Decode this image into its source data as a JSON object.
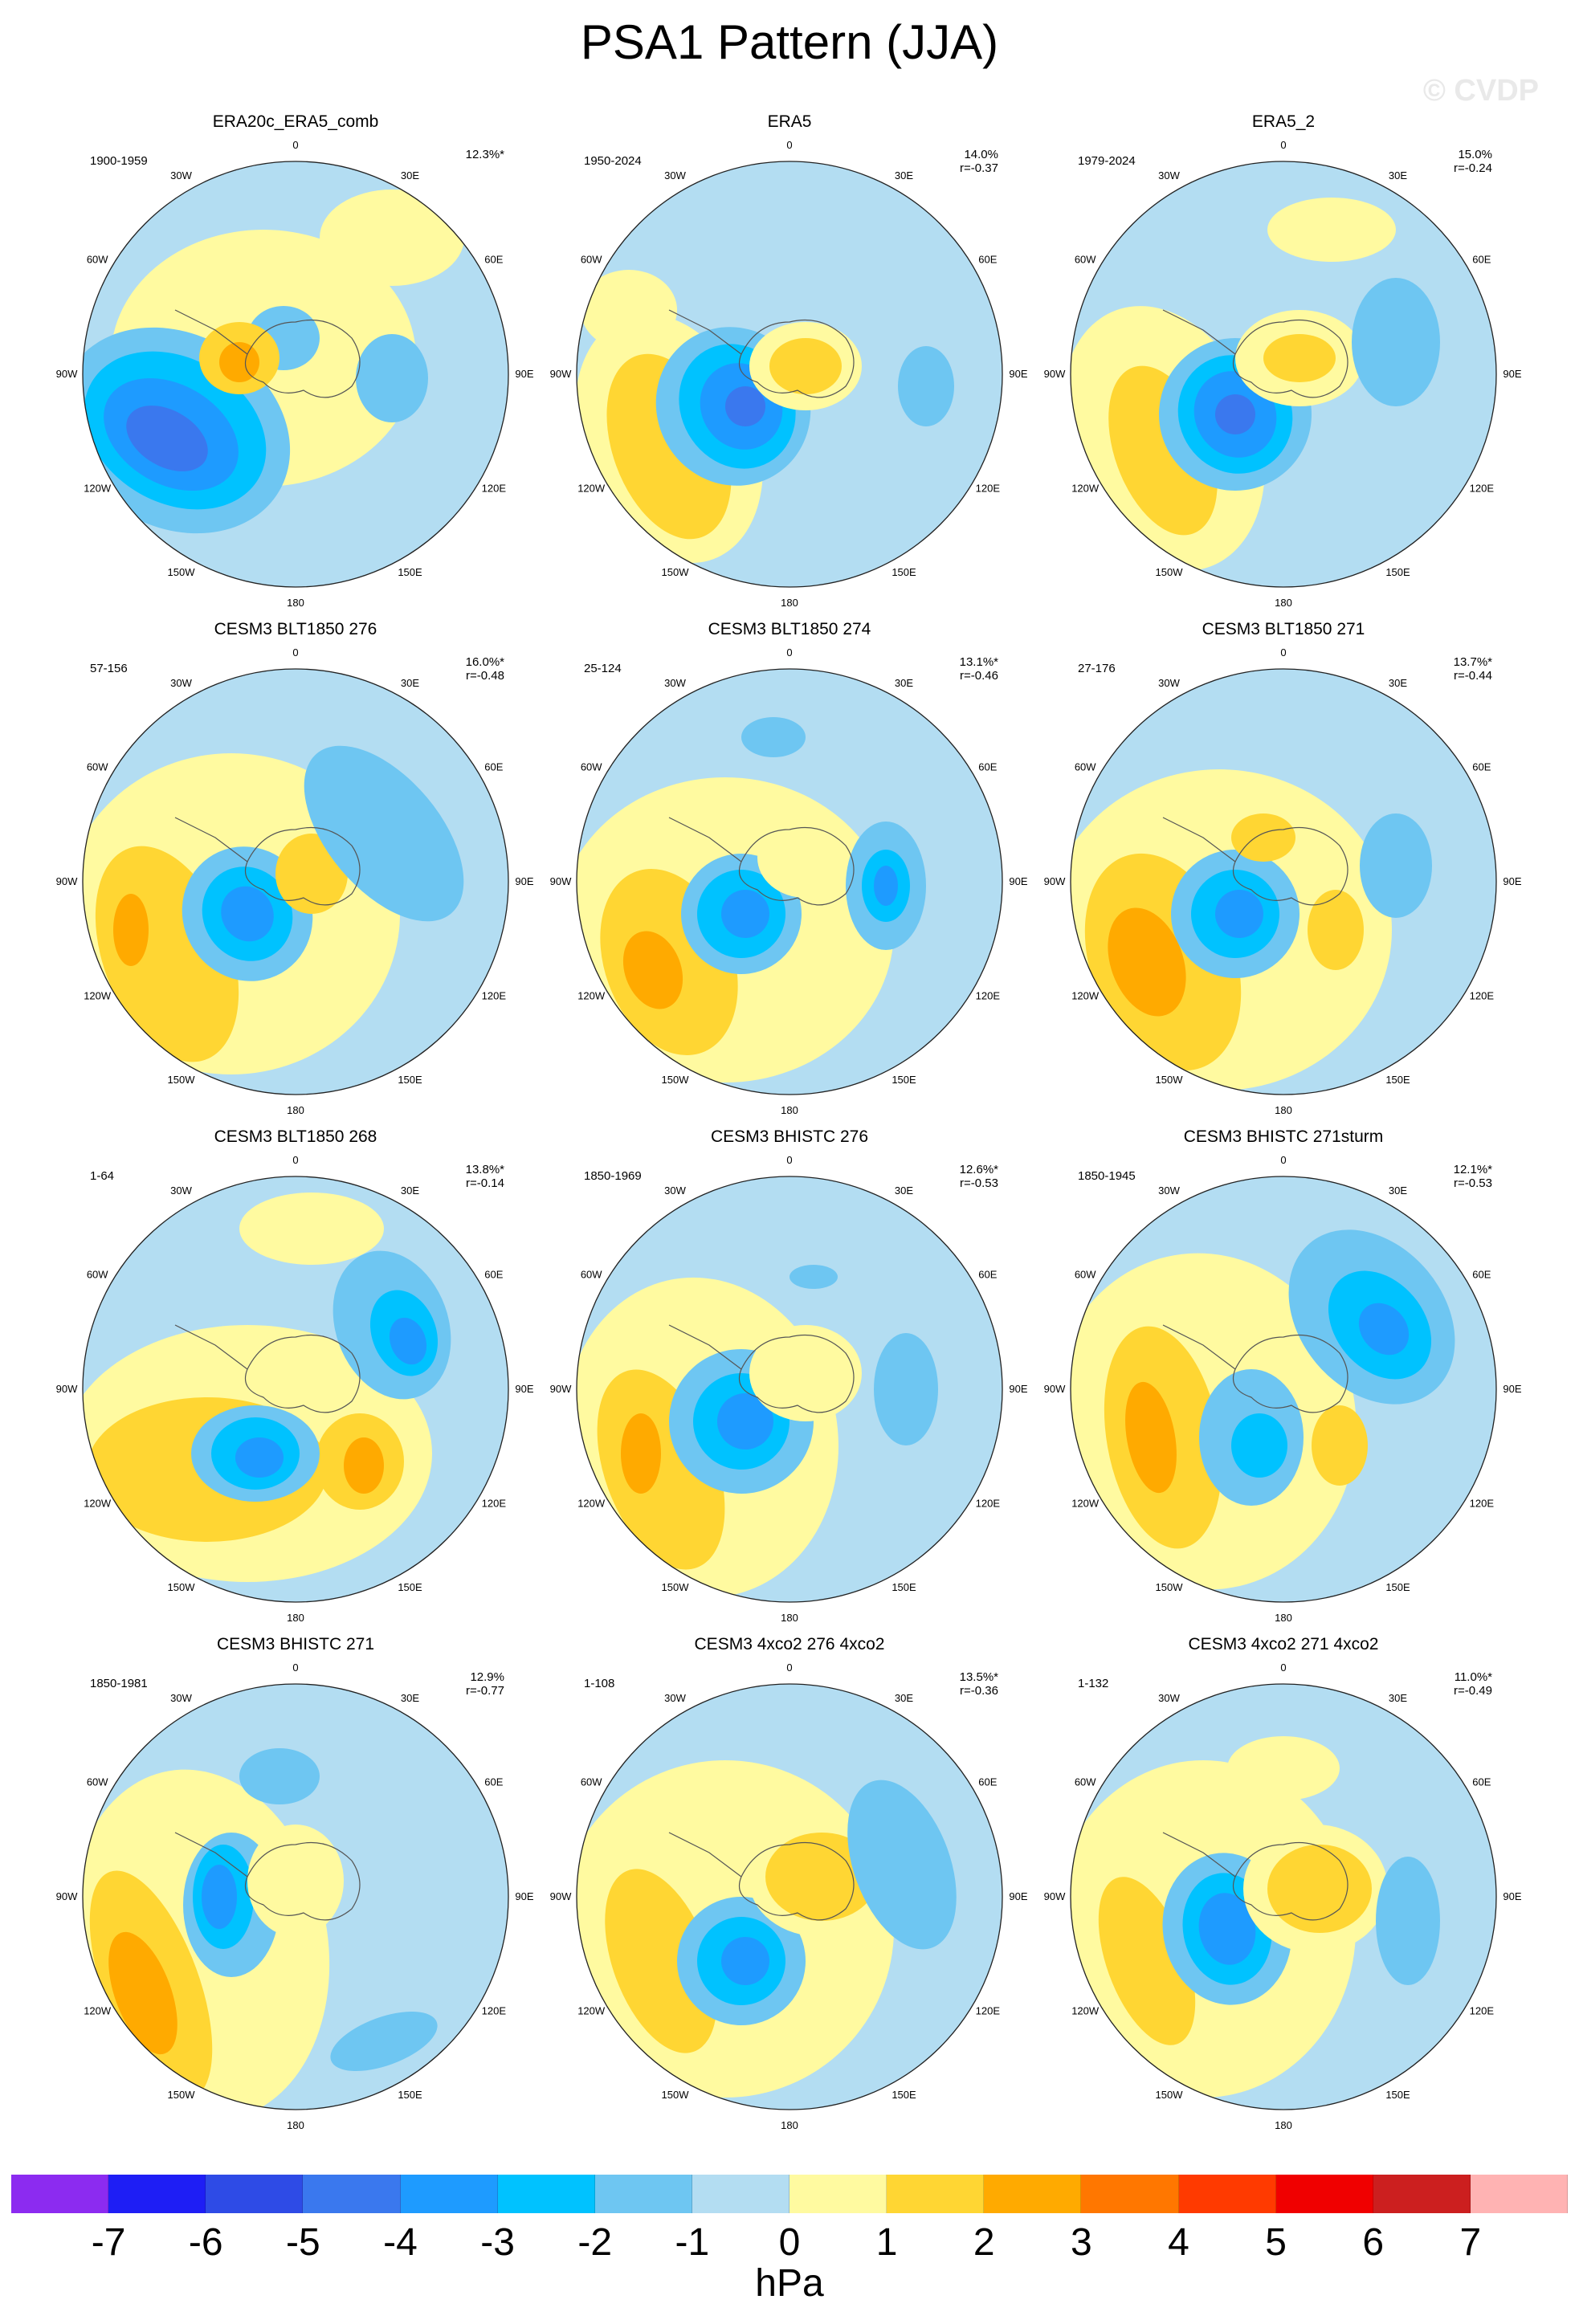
{
  "title": "PSA1 Pattern (JJA)",
  "watermark": "© CVDP",
  "lon_labels": [
    "0",
    "30E",
    "60E",
    "90E",
    "120E",
    "150E",
    "180",
    "150W",
    "120W",
    "90W",
    "60W",
    "30W"
  ],
  "panels": [
    {
      "title": "ERA20c_ERA5_comb",
      "period": "1900-1959",
      "pct": "12.3%*",
      "r": ""
    },
    {
      "title": "ERA5",
      "period": "1950-2024",
      "pct": "14.0%",
      "r": "r=-0.37"
    },
    {
      "title": "ERA5_2",
      "period": "1979-2024",
      "pct": "15.0%",
      "r": "r=-0.24"
    },
    {
      "title": "CESM3 BLT1850 276",
      "period": "57-156",
      "pct": "16.0%*",
      "r": "r=-0.48"
    },
    {
      "title": "CESM3 BLT1850 274",
      "period": "25-124",
      "pct": "13.1%*",
      "r": "r=-0.46"
    },
    {
      "title": "CESM3 BLT1850 271",
      "period": "27-176",
      "pct": "13.7%*",
      "r": "r=-0.44"
    },
    {
      "title": "CESM3 BLT1850 268",
      "period": "1-64",
      "pct": "13.8%*",
      "r": "r=-0.14"
    },
    {
      "title": "CESM3 BHISTC 276",
      "period": "1850-1969",
      "pct": "12.6%*",
      "r": "r=-0.53"
    },
    {
      "title": "CESM3 BHISTC 271sturm",
      "period": "1850-1945",
      "pct": "12.1%*",
      "r": "r=-0.53"
    },
    {
      "title": "CESM3 BHISTC 271",
      "period": "1850-1981",
      "pct": "12.9%",
      "r": "r=-0.77"
    },
    {
      "title": "CESM3 4xco2 276 4xco2",
      "period": "1-108",
      "pct": "13.5%*",
      "r": "r=-0.36"
    },
    {
      "title": "CESM3 4xco2 271 4xco2",
      "period": "1-132",
      "pct": "11.0%*",
      "r": "r=-0.49"
    }
  ],
  "colorbar": {
    "colors": [
      "#8c2bf0",
      "#1e1ef5",
      "#2e4be6",
      "#3a78ee",
      "#1e9bff",
      "#00c2ff",
      "#6ec6f2",
      "#b3ddf2",
      "#fffaa0",
      "#ffd633",
      "#ffaa00",
      "#ff7700",
      "#ff3a00",
      "#f00000",
      "#cc1f1f",
      "#ffb3b3"
    ],
    "ticks": [
      "-7",
      "-6",
      "-5",
      "-4",
      "-3",
      "-2",
      "-1",
      "0",
      "1",
      "2",
      "3",
      "4",
      "5",
      "6",
      "7"
    ],
    "unit": "hPa"
  }
}
